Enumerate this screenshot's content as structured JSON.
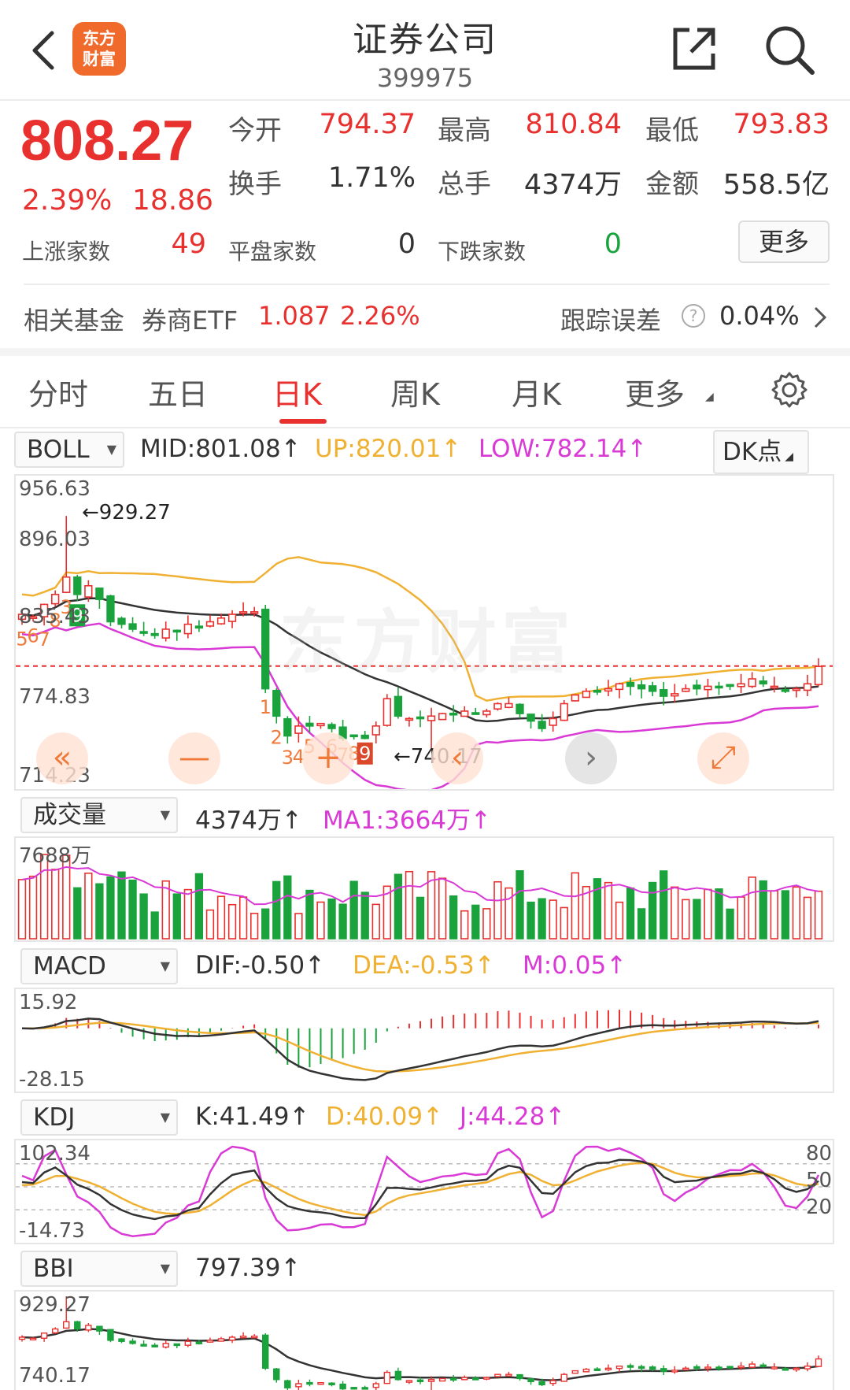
{
  "header": {
    "title": "证券公司",
    "code": "399975",
    "logo_text_1": "东方",
    "logo_text_2": "财富"
  },
  "quote": {
    "price": "808.27",
    "change_pct": "2.39%",
    "change": "18.86",
    "open_label": "今开",
    "open": "794.37",
    "high_label": "最高",
    "high": "810.84",
    "low_label": "最低",
    "low": "793.83",
    "turnover_label": "换手",
    "turnover": "1.71%",
    "volume_label": "总手",
    "volume": "4374万",
    "amount_label": "金额",
    "amount": "558.5亿",
    "up_count_label": "上涨家数",
    "up_count": "49",
    "flat_count_label": "平盘家数",
    "flat_count": "0",
    "down_count_label": "下跌家数",
    "down_count": "0",
    "more_label": "更多"
  },
  "fund": {
    "label": "相关基金",
    "name": "券商ETF",
    "price": "1.087",
    "pct": "2.26%",
    "error_label": "跟踪误差",
    "error_value": "0.04%"
  },
  "tabs": [
    "分时",
    "五日",
    "日K",
    "周K",
    "月K",
    "更多"
  ],
  "boll": {
    "selector": "BOLL",
    "mid": "MID:801.08",
    "up": "UP:820.01",
    "low": "LOW:782.14",
    "dk_label": "DK点",
    "axis": [
      "956.63",
      "896.03",
      "835.43",
      "774.83",
      "714.23"
    ],
    "max_label": "929.27",
    "min_label": "740.17",
    "markers": [
      "5",
      "6",
      "7",
      "8",
      "3",
      "9",
      "1",
      "2",
      "3",
      "4",
      "5",
      "6",
      "7",
      "8",
      "9"
    ]
  },
  "volume": {
    "selector": "成交量",
    "value": "4374万",
    "ma1": "MA1:3664万",
    "axis_top": "7688万"
  },
  "macd": {
    "selector": "MACD",
    "dif": "DIF:-0.50",
    "dea": "DEA:-0.53",
    "m": "M:0.05",
    "axis_top": "15.92",
    "axis_bottom": "-28.15"
  },
  "kdj": {
    "selector": "KDJ",
    "k": "K:41.49",
    "d": "D:40.09",
    "j": "J:44.28",
    "axis_top": "102.34",
    "axis_bottom": "-14.73",
    "right_80": "80",
    "right_50": "50",
    "right_20": "20"
  },
  "bbi": {
    "selector": "BBI",
    "value": "797.39",
    "axis_top": "929.27",
    "axis_bottom": "740.17"
  },
  "colors": {
    "red": "#e8312f",
    "green": "#1aa33c",
    "mid_line": "#333333",
    "up_line": "#f0b132",
    "low_line": "#d93ad6"
  },
  "chart_data": {
    "type": "candlestick",
    "price_axis_ticks": [
      956.63,
      896.03,
      835.43,
      774.83,
      714.23
    ],
    "closes": [
      850,
      848,
      858,
      866,
      880,
      866,
      873,
      862,
      844,
      842,
      838,
      836,
      833,
      838,
      836,
      842,
      839,
      844,
      847,
      850,
      852,
      852,
      790,
      768,
      752,
      760,
      760,
      762,
      758,
      750,
      752,
      750,
      760,
      782,
      768,
      766,
      766,
      768,
      770,
      770,
      772,
      770,
      772,
      778,
      778,
      770,
      764,
      758,
      766,
      778,
      785,
      788,
      788,
      790,
      794,
      792,
      790,
      788,
      784,
      786,
      790,
      790,
      792,
      792,
      792,
      794,
      798,
      794,
      792,
      788,
      790,
      794,
      808
    ]
  }
}
